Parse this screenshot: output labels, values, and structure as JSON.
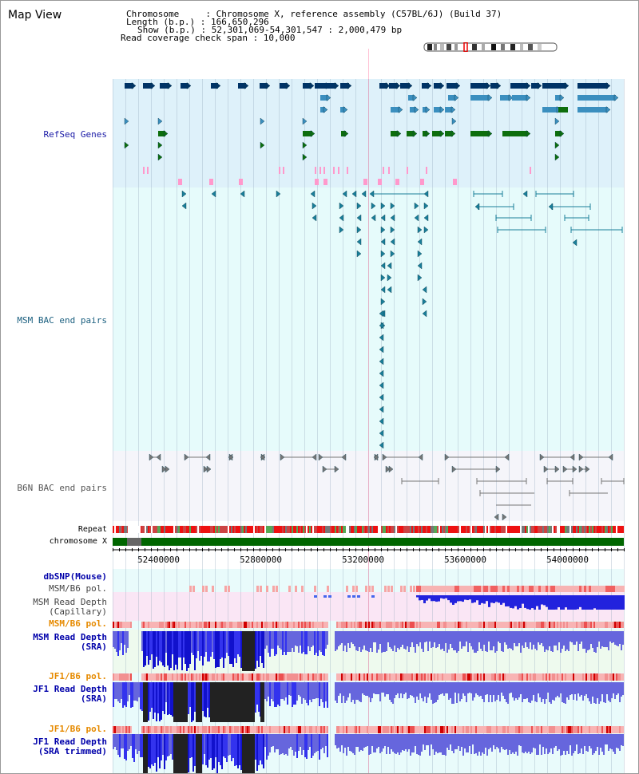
{
  "title": "Map View",
  "info": {
    "chromosome_line": "Chromosome     : Chromosome X, reference assembly (C57BL/6J) (Build 37)",
    "length_line": "Length (b.p.) : 166,650,296",
    "show_line": "Show (b.p.) : 52,301,069-54,301,547 : 2,000,479 bp",
    "coverage_line": "Read coverage check span : 10,000"
  },
  "tracks": {
    "refseq": "RefSeq Genes",
    "msm_bac": "MSM BAC end pairs",
    "b6n_bac": "B6N BAC end pairs",
    "repeat": "Repeat",
    "chromosome": "chromosome X",
    "dbsnp": "dbSNP(Mouse)",
    "msm_pol": "MSM/B6 pol.",
    "msm_depth_cap_1": "MSM Read Depth",
    "msm_depth_cap_2": "(Capillary)",
    "msm_pol_2": "MSM/B6 pol.",
    "msm_depth_sra_1": "MSM Read Depth",
    "msm_depth_sra_2": "(SRA)",
    "jf1_pol": "JF1/B6 pol.",
    "jf1_depth_1": "JF1 Read Depth",
    "jf1_depth_2": "(SRA)",
    "jf1_pol_2": "JF1/B6 pol.",
    "jf1_trim_1": "JF1 Read Depth",
    "jf1_trim_2": "(SRA trimmed)"
  },
  "axis": {
    "ticks": [
      "52400000",
      "52800000",
      "53200000",
      "53600000",
      "54000000"
    ]
  },
  "colors": {
    "refseq_bg": "#def1fa",
    "msm_bg": "#e6fbfb",
    "b6n_bg": "#f5f5fa",
    "dark_gene": "#003366",
    "mid_gene": "#3b8fbf",
    "green_gene": "#0d6e0d",
    "pink": "#ff99cc",
    "teal": "#1a7f9a",
    "gray_pair": "#777777",
    "chrom_green": "#006600",
    "depth_blue": "#2222dd"
  }
}
